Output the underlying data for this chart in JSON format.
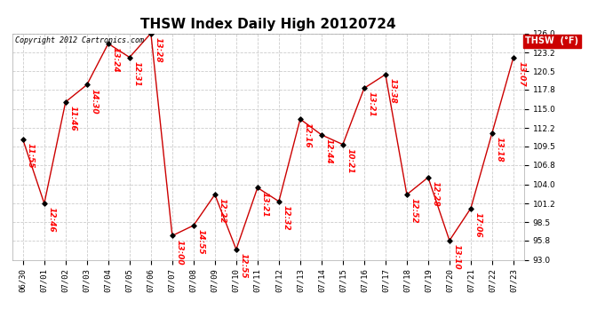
{
  "title": "THSW Index Daily High 20120724",
  "copyright": "Copyright 2012 Cartronics.com",
  "legend_label": "THSW  (°F)",
  "bg_color": "#ffffff",
  "line_color": "#cc0000",
  "marker_color": "#000000",
  "grid_color": "#cccccc",
  "dates": [
    "06/30",
    "07/01",
    "07/02",
    "07/03",
    "07/04",
    "07/05",
    "07/06",
    "07/07",
    "07/08",
    "07/09",
    "07/10",
    "07/11",
    "07/12",
    "07/13",
    "07/14",
    "07/15",
    "07/16",
    "07/17",
    "07/18",
    "07/19",
    "07/20",
    "07/21",
    "07/22",
    "07/23"
  ],
  "values": [
    110.5,
    101.2,
    116.0,
    118.5,
    124.5,
    122.5,
    126.0,
    96.5,
    98.0,
    102.5,
    94.5,
    103.5,
    101.5,
    113.5,
    111.2,
    109.8,
    118.0,
    120.0,
    102.5,
    105.0,
    95.8,
    100.5,
    111.5,
    122.5
  ],
  "time_labels": [
    "11:55",
    "12:46",
    "11:46",
    "14:30",
    "13:24",
    "12:31",
    "13:28",
    "13:00",
    "14:55",
    "12:22",
    "12:55",
    "13:21",
    "12:32",
    "12:16",
    "12:44",
    "10:21",
    "13:21",
    "13:38",
    "12:52",
    "12:28",
    "13:10",
    "17:06",
    "13:18",
    "13:07"
  ],
  "ylim": [
    93.0,
    126.0
  ],
  "yticks": [
    93.0,
    95.8,
    98.5,
    101.2,
    104.0,
    106.8,
    109.5,
    112.2,
    115.0,
    117.8,
    120.5,
    123.2,
    126.0
  ],
  "title_fontsize": 11,
  "label_fontsize": 6.5,
  "tick_fontsize": 6.5,
  "copyright_fontsize": 6
}
